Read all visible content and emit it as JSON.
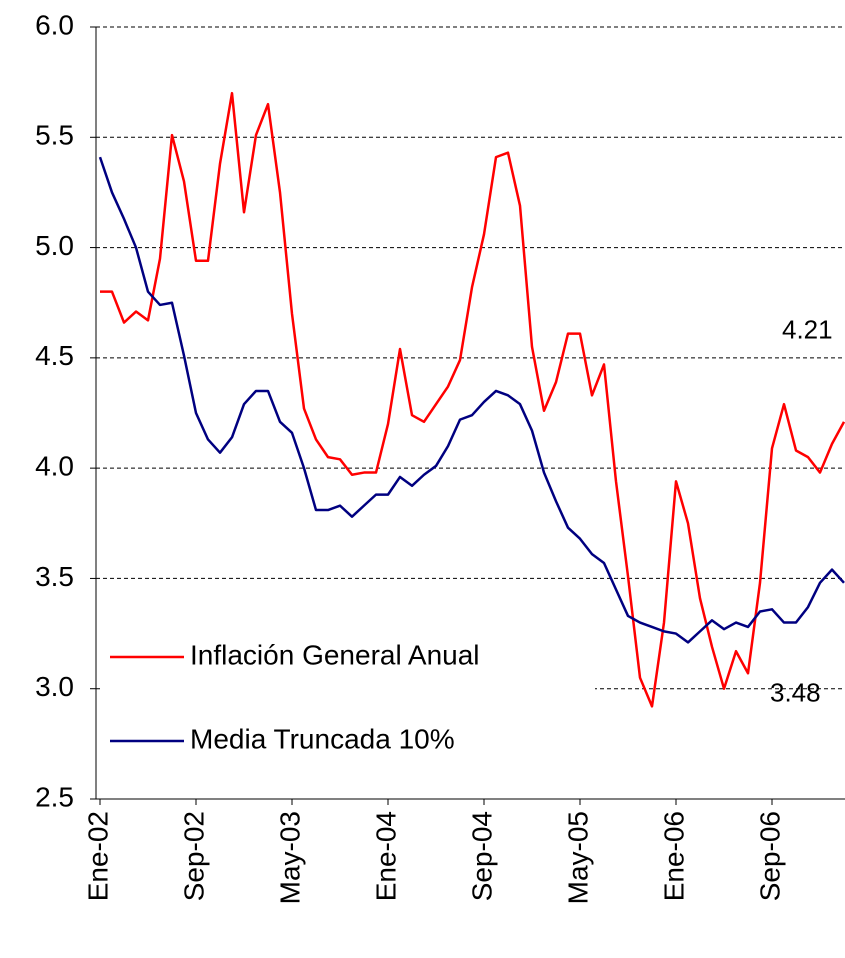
{
  "chart_data": {
    "type": "line",
    "categories": [
      "Ene-02",
      null,
      null,
      null,
      null,
      null,
      null,
      null,
      "Sep-02",
      null,
      null,
      null,
      null,
      null,
      null,
      null,
      "May-03",
      null,
      null,
      null,
      null,
      null,
      null,
      null,
      "Ene-04",
      null,
      null,
      null,
      null,
      null,
      null,
      null,
      "Sep-04",
      null,
      null,
      null,
      null,
      null,
      null,
      null,
      "May-05",
      null,
      null,
      null,
      null,
      null,
      null,
      null,
      "Ene-06",
      null,
      null,
      null,
      null,
      null,
      null,
      null,
      "Sep-06",
      null,
      null,
      null,
      null,
      null,
      null
    ],
    "series": [
      {
        "name": "Inflación General Anual",
        "color": "#ff0000",
        "values": [
          4.8,
          4.8,
          4.66,
          4.71,
          4.67,
          4.95,
          5.51,
          5.3,
          4.94,
          4.94,
          5.38,
          5.7,
          5.16,
          5.51,
          5.65,
          5.25,
          4.7,
          4.27,
          4.13,
          4.05,
          4.04,
          3.97,
          3.98,
          3.98,
          4.2,
          4.54,
          4.24,
          4.21,
          4.29,
          4.37,
          4.49,
          4.82,
          5.06,
          5.41,
          5.43,
          5.19,
          4.55,
          4.26,
          4.39,
          4.61,
          4.61,
          4.33,
          4.47,
          3.94,
          3.51,
          3.05,
          2.92,
          3.3,
          3.94,
          3.75,
          3.41,
          3.19,
          3.0,
          3.17,
          3.07,
          3.48,
          4.09,
          4.29,
          4.08,
          4.05,
          3.98,
          4.11,
          4.21
        ]
      },
      {
        "name": "Media Truncada 10%",
        "color": "#000080",
        "values": [
          5.41,
          5.25,
          5.13,
          5.0,
          4.8,
          4.74,
          4.75,
          4.51,
          4.25,
          4.13,
          4.07,
          4.14,
          4.29,
          4.35,
          4.35,
          4.21,
          4.16,
          4.0,
          3.81,
          3.81,
          3.83,
          3.78,
          3.83,
          3.88,
          3.88,
          3.96,
          3.92,
          3.97,
          4.01,
          4.1,
          4.22,
          4.24,
          4.3,
          4.35,
          4.33,
          4.29,
          4.17,
          3.98,
          3.85,
          3.73,
          3.68,
          3.61,
          3.57,
          3.45,
          3.33,
          3.3,
          3.28,
          3.26,
          3.25,
          3.21,
          3.26,
          3.31,
          3.27,
          3.3,
          3.28,
          3.35,
          3.36,
          3.3,
          3.3,
          3.37,
          3.48,
          3.54,
          3.48
        ]
      }
    ],
    "ylim": [
      2.5,
      6.0
    ],
    "yticks": [
      {
        "value": 2.5,
        "label": "2.5"
      },
      {
        "value": 3.0,
        "label": "3.0"
      },
      {
        "value": 3.5,
        "label": "3.5"
      },
      {
        "value": 4.0,
        "label": "4.0"
      },
      {
        "value": 4.5,
        "label": "4.5"
      },
      {
        "value": 5.0,
        "label": "5.0"
      },
      {
        "value": 5.5,
        "label": "5.5"
      },
      {
        "value": 6.0,
        "label": "6.0"
      }
    ],
    "grid": true
  }
}
